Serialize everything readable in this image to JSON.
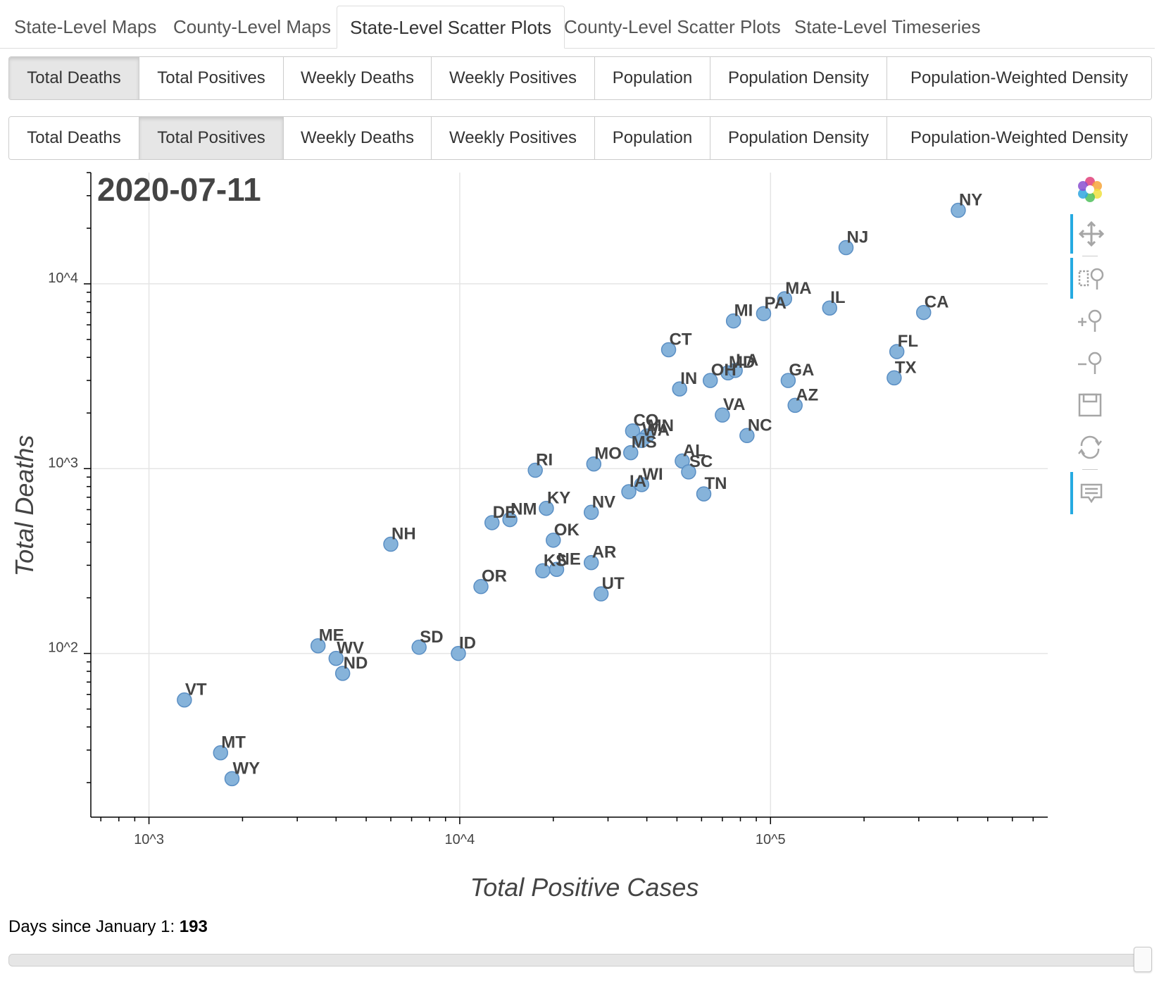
{
  "tabs": [
    {
      "label": "State-Level Maps",
      "active": false
    },
    {
      "label": "County-Level Maps",
      "active": false
    },
    {
      "label": "State-Level Scatter Plots",
      "active": true
    },
    {
      "label": "County-Level Scatter Plots",
      "active": false
    },
    {
      "label": "State-Level Timeseries",
      "active": false
    }
  ],
  "y_selector": {
    "options": [
      "Total Deaths",
      "Total Positives",
      "Weekly Deaths",
      "Weekly Positives",
      "Population",
      "Population Density",
      "Population-Weighted Density"
    ],
    "selected": "Total Deaths"
  },
  "x_selector": {
    "options": [
      "Total Deaths",
      "Total Positives",
      "Weekly Deaths",
      "Weekly Positives",
      "Population",
      "Population Density",
      "Population-Weighted Density"
    ],
    "selected": "Total Positives"
  },
  "toolbar": {
    "logo": "bokeh-logo-icon",
    "tools": [
      {
        "icon": "pan-icon",
        "active": true
      },
      {
        "icon": "box-zoom-icon",
        "active": true
      },
      {
        "icon": "zoom-in-icon",
        "active": false
      },
      {
        "icon": "zoom-out-icon",
        "active": false
      },
      {
        "icon": "save-icon",
        "active": false
      },
      {
        "icon": "reset-icon",
        "active": false
      },
      {
        "icon": "hover-icon",
        "active": true
      }
    ]
  },
  "slider": {
    "label": "Days since January 1: ",
    "value": "193",
    "fraction": 1.0
  },
  "chart_data": {
    "type": "scatter",
    "title": "2020-07-11",
    "xlabel": "Total Positive Cases",
    "ylabel": "Total Deaths",
    "x_scale": "log",
    "y_scale": "log",
    "xlim": [
      650,
      780000
    ],
    "ylim": [
      13,
      40000
    ],
    "x_ticks": [
      {
        "value": 1000,
        "label": "10^3"
      },
      {
        "value": 10000,
        "label": "10^4"
      },
      {
        "value": 100000,
        "label": "10^5"
      }
    ],
    "y_ticks": [
      {
        "value": 100,
        "label": "10^2"
      },
      {
        "value": 1000,
        "label": "10^3"
      },
      {
        "value": 10000,
        "label": "10^4"
      }
    ],
    "grid": true,
    "marker_color": "#7fafd8",
    "points": [
      {
        "label": "NY",
        "x": 402000,
        "y": 25000
      },
      {
        "label": "NJ",
        "x": 175000,
        "y": 15700
      },
      {
        "label": "MA",
        "x": 111000,
        "y": 8300
      },
      {
        "label": "IL",
        "x": 155000,
        "y": 7400
      },
      {
        "label": "CA",
        "x": 311000,
        "y": 7000
      },
      {
        "label": "PA",
        "x": 95000,
        "y": 6900
      },
      {
        "label": "MI",
        "x": 76000,
        "y": 6300
      },
      {
        "label": "CT",
        "x": 47000,
        "y": 4400
      },
      {
        "label": "FL",
        "x": 255000,
        "y": 4300
      },
      {
        "label": "MD",
        "x": 73000,
        "y": 3300
      },
      {
        "label": "LA",
        "x": 77000,
        "y": 3400
      },
      {
        "label": "OH",
        "x": 64000,
        "y": 3000
      },
      {
        "label": "TX",
        "x": 250000,
        "y": 3100
      },
      {
        "label": "GA",
        "x": 114000,
        "y": 3000
      },
      {
        "label": "IN",
        "x": 51000,
        "y": 2700
      },
      {
        "label": "AZ",
        "x": 120000,
        "y": 2200
      },
      {
        "label": "VA",
        "x": 70000,
        "y": 1950
      },
      {
        "label": "CO",
        "x": 36000,
        "y": 1600
      },
      {
        "label": "MN",
        "x": 40000,
        "y": 1500
      },
      {
        "label": "WA",
        "x": 38500,
        "y": 1420
      },
      {
        "label": "NC",
        "x": 84000,
        "y": 1510
      },
      {
        "label": "MS",
        "x": 35500,
        "y": 1220
      },
      {
        "label": "AL",
        "x": 52000,
        "y": 1100
      },
      {
        "label": "MO",
        "x": 27000,
        "y": 1060
      },
      {
        "label": "RI",
        "x": 17500,
        "y": 980
      },
      {
        "label": "SC",
        "x": 54500,
        "y": 960
      },
      {
        "label": "WI",
        "x": 38500,
        "y": 820
      },
      {
        "label": "IA",
        "x": 35000,
        "y": 750
      },
      {
        "label": "TN",
        "x": 61000,
        "y": 730
      },
      {
        "label": "KY",
        "x": 19000,
        "y": 610
      },
      {
        "label": "NV",
        "x": 26500,
        "y": 580
      },
      {
        "label": "NM",
        "x": 14500,
        "y": 530
      },
      {
        "label": "DE",
        "x": 12700,
        "y": 510
      },
      {
        "label": "OK",
        "x": 20000,
        "y": 410
      },
      {
        "label": "NH",
        "x": 6000,
        "y": 390
      },
      {
        "label": "AR",
        "x": 26500,
        "y": 310
      },
      {
        "label": "KS",
        "x": 18500,
        "y": 280
      },
      {
        "label": "NE",
        "x": 20500,
        "y": 285
      },
      {
        "label": "OR",
        "x": 11700,
        "y": 230
      },
      {
        "label": "UT",
        "x": 28500,
        "y": 210
      },
      {
        "label": "ME",
        "x": 3500,
        "y": 110
      },
      {
        "label": "SD",
        "x": 7400,
        "y": 108
      },
      {
        "label": "ID",
        "x": 9900,
        "y": 100
      },
      {
        "label": "WV",
        "x": 4000,
        "y": 94
      },
      {
        "label": "ND",
        "x": 4200,
        "y": 78
      },
      {
        "label": "VT",
        "x": 1300,
        "y": 56
      },
      {
        "label": "MT",
        "x": 1700,
        "y": 29
      },
      {
        "label": "WY",
        "x": 1850,
        "y": 21
      }
    ]
  }
}
